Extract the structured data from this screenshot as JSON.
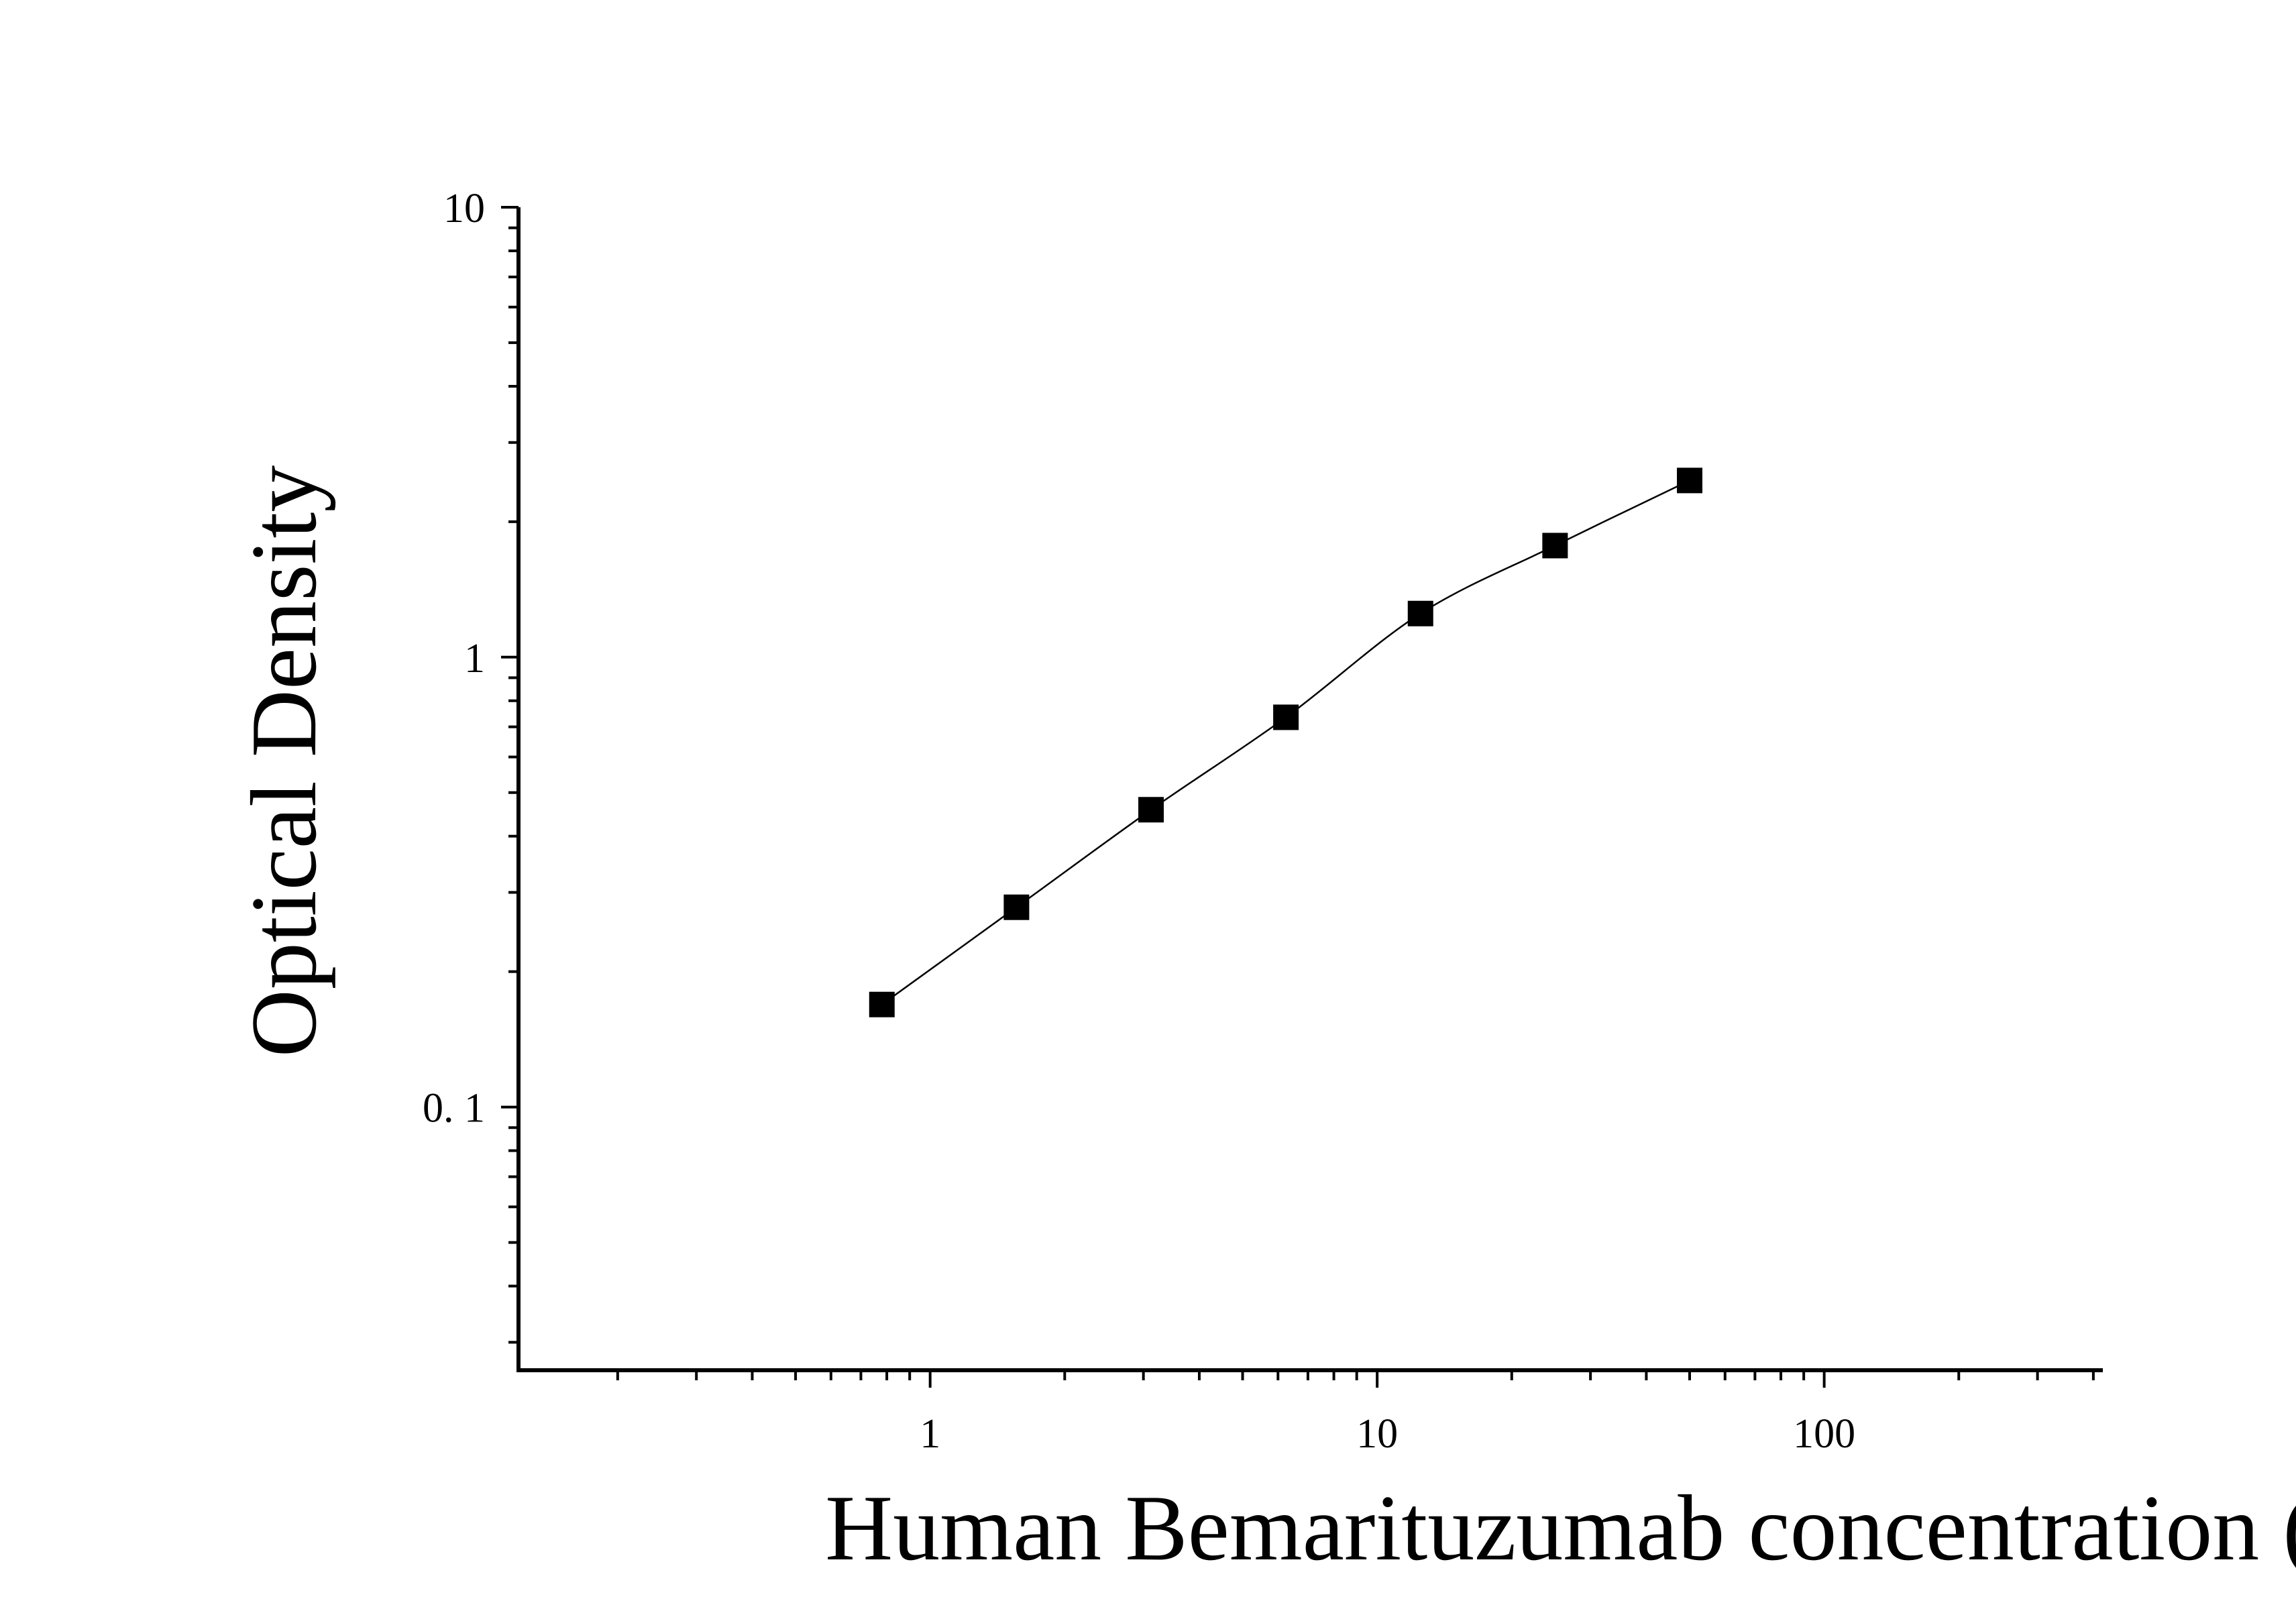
{
  "chart_data": {
    "type": "scatter",
    "xlabel": "Human Bemarituzumab concentration (ng/mL)",
    "ylabel": "Optical Density",
    "x_scale": "log",
    "y_scale": "log",
    "xlim": [
      0.12,
      420
    ],
    "ylim": [
      0.026,
      10
    ],
    "x_ticks": [
      {
        "value": 1,
        "label": "1"
      },
      {
        "value": 10,
        "label": "10"
      },
      {
        "value": 100,
        "label": "100"
      }
    ],
    "y_ticks": [
      {
        "value": 10,
        "label": "10"
      },
      {
        "value": 1,
        "label": "1"
      },
      {
        "value": 0.1,
        "label": "0. 1"
      }
    ],
    "grid": false,
    "marker": "square",
    "fit_line": true,
    "series": [
      {
        "x": [
          0.78,
          1.56,
          3.12,
          6.25,
          12.5,
          25,
          50
        ],
        "y": [
          0.169,
          0.278,
          0.458,
          0.735,
          1.25,
          1.77,
          2.47
        ]
      }
    ],
    "colors": {
      "marker": "#000000",
      "axis": "#000000",
      "background": "#ffffff"
    }
  }
}
